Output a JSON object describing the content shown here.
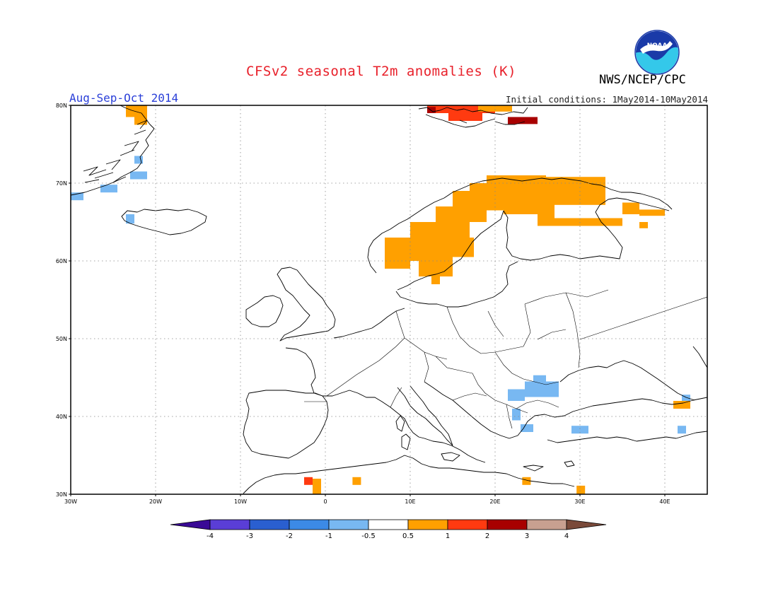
{
  "header": {
    "title": "CFSv2 seasonal T2m anomalies (K)",
    "agency": "NWS/NCEP/CPC",
    "logo_text": "NOAA",
    "season": "Aug-Sep-Oct 2014",
    "initial_conditions": "Initial conditions: 1May2014-10May2014"
  },
  "map": {
    "lon_range": [
      -30,
      45
    ],
    "lat_range": [
      30,
      80
    ],
    "lon_ticks": [
      {
        "lon": -30,
        "label": "30W"
      },
      {
        "lon": -20,
        "label": "20W"
      },
      {
        "lon": -10,
        "label": "10W"
      },
      {
        "lon": 0,
        "label": "0"
      },
      {
        "lon": 10,
        "label": "10E"
      },
      {
        "lon": 20,
        "label": "20E"
      },
      {
        "lon": 30,
        "label": "30E"
      },
      {
        "lon": 40,
        "label": "40E"
      }
    ],
    "lat_ticks": [
      {
        "lat": 30,
        "label": "30N"
      },
      {
        "lat": 40,
        "label": "40N"
      },
      {
        "lat": 50,
        "label": "50N"
      },
      {
        "lat": 60,
        "label": "60N"
      },
      {
        "lat": 70,
        "label": "70N"
      },
      {
        "lat": 80,
        "label": "80N"
      }
    ],
    "grid": true,
    "colors": {
      "lt_-4": "#3a0a96",
      "-4_-3": "#5a3ed6",
      "-3_-2": "#2a5fd0",
      "-2_-1": "#3c8ae6",
      "-1_-0.5": "#78b8f2",
      "-0.5_0.5": "#ffffff",
      "0.5_1": "#ffa000",
      "1_2": "#ff3a10",
      "2_3": "#a80000",
      "3_4": "#c8a090",
      "gt_4": "#7a4a3a"
    },
    "anomaly_cells": [
      {
        "bin": "0.5_1",
        "lon0": -23.5,
        "lon1": -21,
        "lat0": 78.5,
        "lat1": 80
      },
      {
        "bin": "0.5_1",
        "lon0": -22.5,
        "lon1": -21,
        "lat0": 77.5,
        "lat1": 78.5
      },
      {
        "bin": "1_2",
        "lon0": 12,
        "lon1": 20,
        "lat0": 79,
        "lat1": 80
      },
      {
        "bin": "1_2",
        "lon0": 14.5,
        "lon1": 18.5,
        "lat0": 78,
        "lat1": 79
      },
      {
        "bin": "2_3",
        "lon0": 12,
        "lon1": 13,
        "lat0": 79,
        "lat1": 79.8
      },
      {
        "bin": "2_3",
        "lon0": 21.5,
        "lon1": 25,
        "lat0": 77.6,
        "lat1": 78.5
      },
      {
        "bin": "0.5_1",
        "lon0": 18,
        "lon1": 22,
        "lat0": 79.2,
        "lat1": 80
      },
      {
        "bin": "-1_-0.5",
        "lon0": -23,
        "lon1": -21,
        "lat0": 70.5,
        "lat1": 71.5
      },
      {
        "bin": "-1_-0.5",
        "lon0": -22.5,
        "lon1": -21.5,
        "lat0": 72.5,
        "lat1": 73.5
      },
      {
        "bin": "-1_-0.5",
        "lon0": -30,
        "lon1": -28.5,
        "lat0": 67.8,
        "lat1": 68.8
      },
      {
        "bin": "-1_-0.5",
        "lon0": -26.5,
        "lon1": -24.5,
        "lat0": 68.8,
        "lat1": 69.8
      },
      {
        "bin": "-1_-0.5",
        "lon0": -23.5,
        "lon1": -22.5,
        "lat0": 64.8,
        "lat1": 66
      },
      {
        "bin": "0.5_1",
        "lon0": 19,
        "lon1": 26,
        "lat0": 67.5,
        "lat1": 71
      },
      {
        "bin": "0.5_1",
        "lon0": 26,
        "lon1": 33,
        "lat0": 67.2,
        "lat1": 70.8
      },
      {
        "bin": "0.5_1",
        "lon0": 17,
        "lon1": 21,
        "lat0": 66.5,
        "lat1": 70
      },
      {
        "bin": "0.5_1",
        "lon0": 15,
        "lon1": 19,
        "lat0": 65,
        "lat1": 69
      },
      {
        "bin": "0.5_1",
        "lon0": 13,
        "lon1": 17,
        "lat0": 63,
        "lat1": 67
      },
      {
        "bin": "0.5_1",
        "lon0": 10,
        "lon1": 14,
        "lat0": 60,
        "lat1": 65
      },
      {
        "bin": "0.5_1",
        "lon0": 7,
        "lon1": 10,
        "lat0": 59,
        "lat1": 63
      },
      {
        "bin": "0.5_1",
        "lon0": 14,
        "lon1": 17.5,
        "lat0": 60.5,
        "lat1": 63
      },
      {
        "bin": "0.5_1",
        "lon0": 11,
        "lon1": 15,
        "lat0": 58,
        "lat1": 60.5
      },
      {
        "bin": "0.5_1",
        "lon0": 12.5,
        "lon1": 13.5,
        "lat0": 57,
        "lat1": 58
      },
      {
        "bin": "0.5_1",
        "lon0": 21,
        "lon1": 27,
        "lat0": 66,
        "lat1": 67.5
      },
      {
        "bin": "0.5_1",
        "lon0": 25,
        "lon1": 27,
        "lat0": 64.5,
        "lat1": 66
      },
      {
        "bin": "0.5_1",
        "lon0": 27,
        "lon1": 35,
        "lat0": 64.5,
        "lat1": 65.5
      },
      {
        "bin": "0.5_1",
        "lon0": 35,
        "lon1": 37,
        "lat0": 66,
        "lat1": 67.5
      },
      {
        "bin": "0.5_1",
        "lon0": 37,
        "lon1": 40,
        "lat0": 65.8,
        "lat1": 66.6
      },
      {
        "bin": "0.5_1",
        "lon0": 37,
        "lon1": 38,
        "lat0": 64.2,
        "lat1": 65
      },
      {
        "bin": "-1_-0.5",
        "lon0": 23.5,
        "lon1": 27.5,
        "lat0": 42.5,
        "lat1": 44.5
      },
      {
        "bin": "-1_-0.5",
        "lon0": 24.5,
        "lon1": 26,
        "lat0": 44.5,
        "lat1": 45.3
      },
      {
        "bin": "-1_-0.5",
        "lon0": 21.5,
        "lon1": 23.5,
        "lat0": 42,
        "lat1": 43.5
      },
      {
        "bin": "-1_-0.5",
        "lon0": 22,
        "lon1": 23,
        "lat0": 39.5,
        "lat1": 41
      },
      {
        "bin": "-1_-0.5",
        "lon0": 23,
        "lon1": 24.5,
        "lat0": 38,
        "lat1": 39
      },
      {
        "bin": "-1_-0.5",
        "lon0": 29,
        "lon1": 31,
        "lat0": 37.8,
        "lat1": 38.8
      },
      {
        "bin": "-1_-0.5",
        "lon0": 42,
        "lon1": 43,
        "lat0": 41.8,
        "lat1": 42.8
      },
      {
        "bin": "-1_-0.5",
        "lon0": 41.5,
        "lon1": 42.5,
        "lat0": 37.8,
        "lat1": 38.8
      },
      {
        "bin": "0.5_1",
        "lon0": 41,
        "lon1": 43,
        "lat0": 41,
        "lat1": 42
      },
      {
        "bin": "1_2",
        "lon0": -2.5,
        "lon1": -1.5,
        "lat0": 31.2,
        "lat1": 32.2
      },
      {
        "bin": "0.5_1",
        "lon0": -1.5,
        "lon1": -0.5,
        "lat0": 30,
        "lat1": 32
      },
      {
        "bin": "0.5_1",
        "lon0": 3.2,
        "lon1": 4.2,
        "lat0": 31.2,
        "lat1": 32.2
      },
      {
        "bin": "0.5_1",
        "lon0": 23.2,
        "lon1": 24.2,
        "lat0": 31.2,
        "lat1": 32.2
      },
      {
        "bin": "0.5_1",
        "lon0": 29.6,
        "lon1": 30.6,
        "lat0": 30,
        "lat1": 31.1
      }
    ]
  },
  "colorbar": {
    "labels": [
      "-4",
      "-3",
      "-2",
      "-1",
      "-0.5",
      "0.5",
      "1",
      "2",
      "3",
      "4"
    ],
    "colors": [
      "#5a3ed6",
      "#2a5fd0",
      "#3c8ae6",
      "#78b8f2",
      "#ffffff",
      "#ffa000",
      "#ff3a10",
      "#a80000",
      "#c8a090"
    ],
    "low_arrow_color": "#3a0a96",
    "high_arrow_color": "#7a4a3a"
  }
}
